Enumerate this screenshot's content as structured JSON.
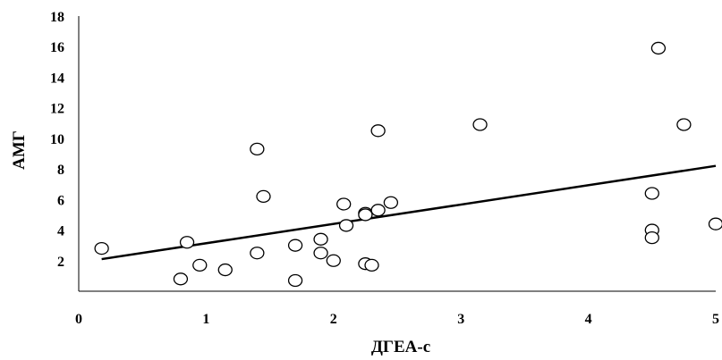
{
  "chart_data": {
    "type": "scatter",
    "title": "",
    "xlabel": "ДГЕА-с",
    "ylabel": "АМГ",
    "xlim": [
      0,
      5
    ],
    "ylim": [
      0,
      18
    ],
    "x_ticks": [
      "0",
      "1",
      "2",
      "3",
      "4",
      "5"
    ],
    "y_ticks": [
      "2",
      "4",
      "6",
      "8",
      "10",
      "12",
      "14",
      "16",
      "18"
    ],
    "grid": false,
    "legend": "none",
    "marker": "open-circle",
    "colors": {
      "marker_stroke": "#000000",
      "marker_fill": "#ffffff",
      "trendline": "#000000",
      "axis": "#000000"
    },
    "points": [
      {
        "x": 0.18,
        "y": 2.8
      },
      {
        "x": 0.8,
        "y": 0.8
      },
      {
        "x": 0.85,
        "y": 3.2
      },
      {
        "x": 0.95,
        "y": 1.7
      },
      {
        "x": 1.15,
        "y": 1.4
      },
      {
        "x": 1.4,
        "y": 2.5
      },
      {
        "x": 1.4,
        "y": 9.3
      },
      {
        "x": 1.45,
        "y": 6.2
      },
      {
        "x": 1.7,
        "y": 0.7
      },
      {
        "x": 1.7,
        "y": 3.0
      },
      {
        "x": 1.9,
        "y": 3.4
      },
      {
        "x": 1.9,
        "y": 2.5
      },
      {
        "x": 2.0,
        "y": 2.0
      },
      {
        "x": 2.08,
        "y": 5.7
      },
      {
        "x": 2.1,
        "y": 4.3
      },
      {
        "x": 2.25,
        "y": 5.1
      },
      {
        "x": 2.25,
        "y": 5.0
      },
      {
        "x": 2.25,
        "y": 1.8
      },
      {
        "x": 2.3,
        "y": 1.7
      },
      {
        "x": 2.35,
        "y": 10.5
      },
      {
        "x": 2.35,
        "y": 5.3
      },
      {
        "x": 2.45,
        "y": 5.8
      },
      {
        "x": 3.15,
        "y": 10.9
      },
      {
        "x": 4.5,
        "y": 6.4
      },
      {
        "x": 4.5,
        "y": 4.0
      },
      {
        "x": 4.5,
        "y": 3.5
      },
      {
        "x": 4.55,
        "y": 15.9
      },
      {
        "x": 4.75,
        "y": 10.9
      },
      {
        "x": 5.0,
        "y": 4.4
      }
    ],
    "trendline": {
      "x": [
        0.18,
        5.0
      ],
      "y": [
        2.1,
        8.2
      ]
    }
  }
}
